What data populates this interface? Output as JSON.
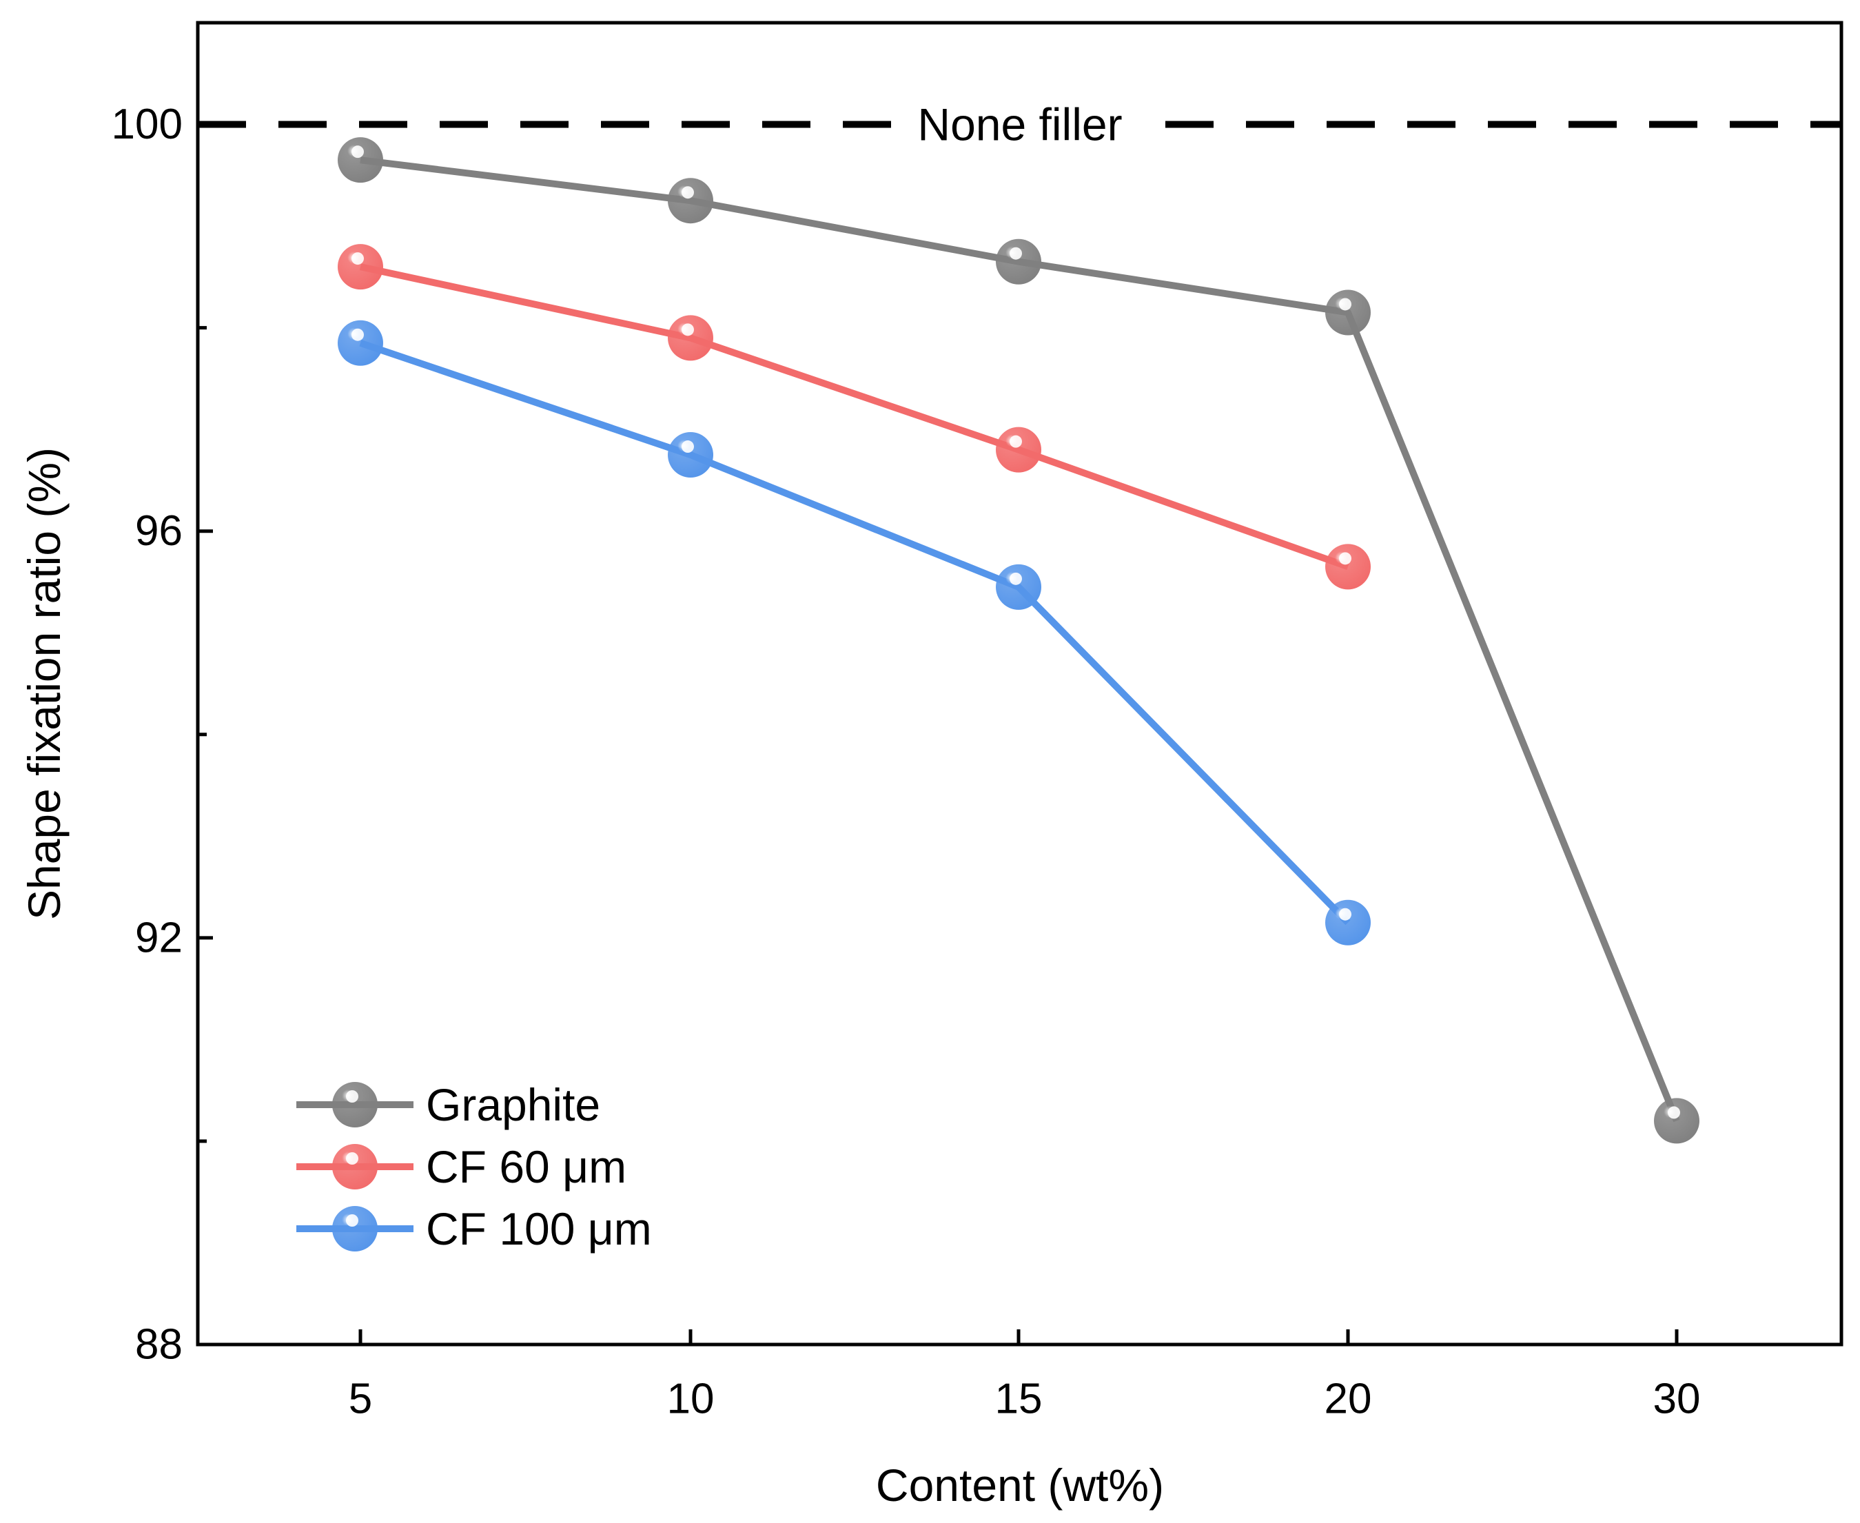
{
  "chart_data": {
    "type": "line",
    "title": "",
    "xlabel": "Content (wt%)",
    "ylabel": "Shape fixation ratio (%)",
    "categories": [
      "5",
      "10",
      "15",
      "20",
      "30"
    ],
    "ylim": [
      88,
      101.0
    ],
    "yticks": [
      88,
      92,
      96,
      100
    ],
    "y_minor_ticks": [
      90,
      94,
      98
    ],
    "grid": false,
    "legend_position": "bottom-left",
    "series": [
      {
        "name": "Graphite",
        "color": "#808080",
        "values": [
          99.65,
          99.25,
          98.65,
          98.15,
          90.2
        ]
      },
      {
        "name": "CF 60 μm",
        "color": "#f26b6b",
        "values": [
          98.6,
          97.9,
          96.8,
          95.65,
          null
        ]
      },
      {
        "name": "CF 100 μm",
        "color": "#5595ea",
        "values": [
          97.85,
          96.75,
          95.45,
          92.15,
          null
        ]
      }
    ],
    "reference_line": {
      "label": "None filler",
      "value": 100,
      "style": "dashed",
      "color": "#000000"
    }
  }
}
